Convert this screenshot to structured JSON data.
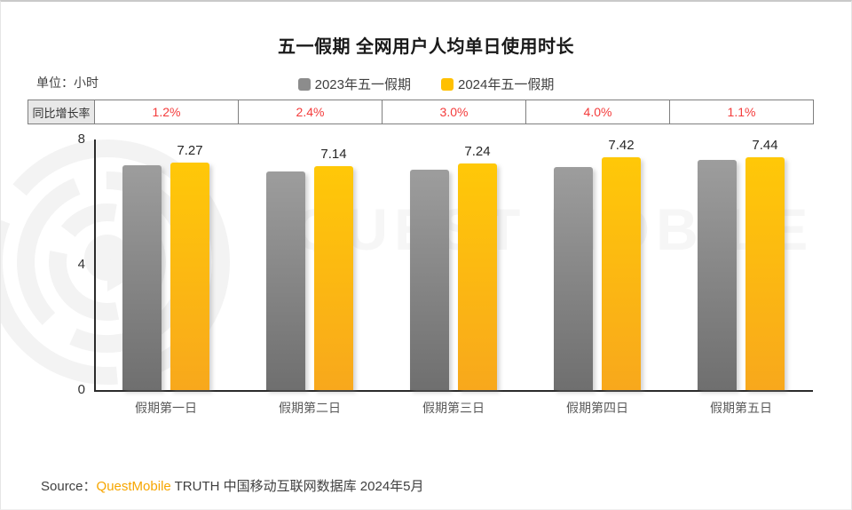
{
  "title": "五一假期 全网用户人均单日使用时长",
  "unit_label": "单位：小时",
  "legend": [
    {
      "label": "2023年五一假期",
      "color": "#8c8c8c"
    },
    {
      "label": "2024年五一假期",
      "color": "#ffc000"
    }
  ],
  "growth_row": {
    "label": "同比增长率",
    "values": [
      "1.2%",
      "2.4%",
      "3.0%",
      "4.0%",
      "1.1%"
    ]
  },
  "chart_data": {
    "type": "bar",
    "title": "五一假期 全网用户人均单日使用时长",
    "ylabel": "小时",
    "ylim": [
      0,
      8
    ],
    "yticks": [
      0,
      4,
      8
    ],
    "grid": false,
    "legend_position": "top-center",
    "categories": [
      "假期第一日",
      "假期第二日",
      "假期第三日",
      "假期第四日",
      "假期第五日"
    ],
    "series": [
      {
        "name": "2023年五一假期",
        "color": "#8c8c8c",
        "values": [
          7.18,
          6.97,
          7.03,
          7.13,
          7.36
        ]
      },
      {
        "name": "2024年五一假期",
        "color": "#ffc000",
        "values": [
          7.27,
          7.14,
          7.24,
          7.42,
          7.44
        ],
        "labels": [
          "7.27",
          "7.14",
          "7.24",
          "7.42",
          "7.44"
        ]
      }
    ],
    "yoy_growth_rates": [
      "1.2%",
      "2.4%",
      "3.0%",
      "4.0%",
      "1.1%"
    ]
  },
  "watermark_text": "QUEST MOBILE",
  "source": {
    "prefix": "Source：",
    "brand": "QuestMobile",
    "suffix": " TRUTH 中国移动互联网数据库 2024年5月"
  },
  "colors": {
    "bar_2023": "#8c8c8c",
    "bar_2024": "#ffc000",
    "growth_text": "#f43b3b",
    "table_border": "#7f7f7f",
    "table_label_bg": "#e8e8e8",
    "brand_orange": "#f7a600",
    "axis": "#2b2b2b"
  }
}
